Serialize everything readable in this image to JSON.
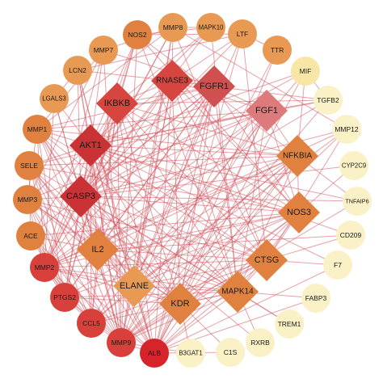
{
  "network": {
    "colors": {
      "edge": "#d2545c",
      "hub_dark": "#c93335",
      "hub_red": "#d64540",
      "mid_red": "#d0504f",
      "pink": "#dd7a7c",
      "orange": "#e0813f",
      "orange_light": "#e89a55",
      "red": "#d8403c",
      "red_dark": "#d7232a",
      "yellow": "#f7e6a6",
      "yellow_light": "#fbf1c6",
      "white": "#ffffff"
    },
    "nodes": [
      {
        "id": "AKT1",
        "shape": "diamond",
        "color": "hub_dark",
        "text": "white"
      },
      {
        "id": "CASP3",
        "shape": "diamond",
        "color": "hub_dark",
        "text": "white"
      },
      {
        "id": "IKBKB",
        "shape": "diamond",
        "color": "hub_red",
        "text": "white"
      },
      {
        "id": "RNASE3",
        "shape": "diamond",
        "color": "hub_red",
        "text": "dark"
      },
      {
        "id": "FGFR1",
        "shape": "diamond",
        "color": "mid_red",
        "text": "white"
      },
      {
        "id": "FGF1",
        "shape": "diamond",
        "color": "pink",
        "text": "dark"
      },
      {
        "id": "NFKBIA",
        "shape": "diamond",
        "color": "orange",
        "text": "dark"
      },
      {
        "id": "NOS3",
        "shape": "diamond",
        "color": "orange",
        "text": "dark"
      },
      {
        "id": "CTSG",
        "shape": "diamond",
        "color": "orange",
        "text": "dark"
      },
      {
        "id": "MAPK14",
        "shape": "diamond",
        "color": "orange",
        "text": "dark"
      },
      {
        "id": "KDR",
        "shape": "diamond",
        "color": "orange",
        "text": "dark"
      },
      {
        "id": "ELANE",
        "shape": "diamond",
        "color": "orange_light",
        "text": "dark"
      },
      {
        "id": "IL2",
        "shape": "diamond",
        "color": "orange",
        "text": "dark"
      },
      {
        "id": "NOS2",
        "shape": "circle",
        "color": "orange",
        "text": "dark"
      },
      {
        "id": "MMP8",
        "shape": "circle",
        "color": "orange_light",
        "text": "dark"
      },
      {
        "id": "MAPK10",
        "shape": "circle",
        "color": "orange_light",
        "text": "dark"
      },
      {
        "id": "LTF",
        "shape": "circle",
        "color": "orange_light",
        "text": "dark"
      },
      {
        "id": "TTR",
        "shape": "circle",
        "color": "orange_light",
        "text": "dark"
      },
      {
        "id": "MIF",
        "shape": "circle",
        "color": "yellow",
        "text": "dark"
      },
      {
        "id": "TGFB2",
        "shape": "circle",
        "color": "yellow_light",
        "text": "dark"
      },
      {
        "id": "MMP12",
        "shape": "circle",
        "color": "yellow_light",
        "text": "dark"
      },
      {
        "id": "CYP2C9",
        "shape": "circle",
        "color": "yellow_light",
        "text": "dark"
      },
      {
        "id": "TNFAIP6",
        "shape": "circle",
        "color": "yellow_light",
        "text": "dark"
      },
      {
        "id": "CD209",
        "shape": "circle",
        "color": "yellow_light",
        "text": "dark"
      },
      {
        "id": "F7",
        "shape": "circle",
        "color": "yellow_light",
        "text": "dark"
      },
      {
        "id": "FABP3",
        "shape": "circle",
        "color": "yellow_light",
        "text": "dark"
      },
      {
        "id": "TREM1",
        "shape": "circle",
        "color": "yellow_light",
        "text": "dark"
      },
      {
        "id": "RXRB",
        "shape": "circle",
        "color": "yellow_light",
        "text": "dark"
      },
      {
        "id": "C1S",
        "shape": "circle",
        "color": "yellow_light",
        "text": "dark"
      },
      {
        "id": "B3GAT1",
        "shape": "circle",
        "color": "yellow_light",
        "text": "dark"
      },
      {
        "id": "ALB",
        "shape": "circle",
        "color": "red_dark",
        "text": "dark"
      },
      {
        "id": "MMP9",
        "shape": "circle",
        "color": "red",
        "text": "dark"
      },
      {
        "id": "CCL5",
        "shape": "circle",
        "color": "red",
        "text": "dark"
      },
      {
        "id": "PTGS2",
        "shape": "circle",
        "color": "red",
        "text": "dark"
      },
      {
        "id": "MMP2",
        "shape": "circle",
        "color": "red",
        "text": "dark"
      },
      {
        "id": "ACE",
        "shape": "circle",
        "color": "orange",
        "text": "dark"
      },
      {
        "id": "MMP3",
        "shape": "circle",
        "color": "orange",
        "text": "dark"
      },
      {
        "id": "SELE",
        "shape": "circle",
        "color": "orange",
        "text": "dark"
      },
      {
        "id": "MMP1",
        "shape": "circle",
        "color": "orange",
        "text": "dark"
      },
      {
        "id": "LGALS3",
        "shape": "circle",
        "color": "orange_light",
        "text": "dark"
      },
      {
        "id": "LCN2",
        "shape": "circle",
        "color": "orange_light",
        "text": "dark"
      },
      {
        "id": "MMP7",
        "shape": "circle",
        "color": "orange_light",
        "text": "dark"
      }
    ],
    "edges": [
      [
        "ALB",
        "AKT1"
      ],
      [
        "ALB",
        "CASP3"
      ],
      [
        "ALB",
        "IL2"
      ],
      [
        "ALB",
        "ELANE"
      ],
      [
        "ALB",
        "KDR"
      ],
      [
        "ALB",
        "MAPK14"
      ],
      [
        "ALB",
        "CTSG"
      ],
      [
        "ALB",
        "NOS3"
      ],
      [
        "ALB",
        "NFKBIA"
      ],
      [
        "ALB",
        "FGF1"
      ],
      [
        "ALB",
        "FGFR1"
      ],
      [
        "ALB",
        "RNASE3"
      ],
      [
        "ALB",
        "IKBKB"
      ],
      [
        "ALB",
        "MMP9"
      ],
      [
        "ALB",
        "MMP2"
      ],
      [
        "ALB",
        "TTR"
      ],
      [
        "ALB",
        "LTF"
      ],
      [
        "ALB",
        "MIF"
      ],
      [
        "ALB",
        "C1S"
      ],
      [
        "ALB",
        "F7"
      ],
      [
        "ALB",
        "FABP3"
      ],
      [
        "ALB",
        "ACE"
      ],
      [
        "ALB",
        "SELE"
      ],
      [
        "ALB",
        "LCN2"
      ],
      [
        "AKT1",
        "CASP3"
      ],
      [
        "AKT1",
        "IKBKB"
      ],
      [
        "AKT1",
        "RNASE3"
      ],
      [
        "AKT1",
        "FGFR1"
      ],
      [
        "AKT1",
        "FGF1"
      ],
      [
        "AKT1",
        "NFKBIA"
      ],
      [
        "AKT1",
        "NOS3"
      ],
      [
        "AKT1",
        "CTSG"
      ],
      [
        "AKT1",
        "MAPK14"
      ],
      [
        "AKT1",
        "KDR"
      ],
      [
        "AKT1",
        "ELANE"
      ],
      [
        "AKT1",
        "IL2"
      ],
      [
        "AKT1",
        "MMP9"
      ],
      [
        "AKT1",
        "MMP2"
      ],
      [
        "AKT1",
        "PTGS2"
      ],
      [
        "AKT1",
        "CCL5"
      ],
      [
        "AKT1",
        "NOS2"
      ],
      [
        "AKT1",
        "MAPK10"
      ],
      [
        "AKT1",
        "MIF"
      ],
      [
        "AKT1",
        "TGFB2"
      ],
      [
        "AKT1",
        "TNFAIP6"
      ],
      [
        "AKT1",
        "CD209"
      ],
      [
        "AKT1",
        "MMP1"
      ],
      [
        "AKT1",
        "MMP3"
      ],
      [
        "AKT1",
        "SELE"
      ],
      [
        "AKT1",
        "LGALS3"
      ],
      [
        "AKT1",
        "LCN2"
      ],
      [
        "AKT1",
        "MMP7"
      ],
      [
        "AKT1",
        "ACE"
      ],
      [
        "AKT1",
        "F7"
      ],
      [
        "CASP3",
        "IKBKB"
      ],
      [
        "CASP3",
        "RNASE3"
      ],
      [
        "CASP3",
        "FGFR1"
      ],
      [
        "CASP3",
        "FGF1"
      ],
      [
        "CASP3",
        "NFKBIA"
      ],
      [
        "CASP3",
        "NOS3"
      ],
      [
        "CASP3",
        "CTSG"
      ],
      [
        "CASP3",
        "MAPK14"
      ],
      [
        "CASP3",
        "KDR"
      ],
      [
        "CASP3",
        "ELANE"
      ],
      [
        "CASP3",
        "IL2"
      ],
      [
        "CASP3",
        "MMP9"
      ],
      [
        "CASP3",
        "MMP2"
      ],
      [
        "CASP3",
        "PTGS2"
      ],
      [
        "CASP3",
        "CCL5"
      ],
      [
        "CASP3",
        "NOS2"
      ],
      [
        "CASP3",
        "MAPK10"
      ],
      [
        "CASP3",
        "LTF"
      ],
      [
        "CASP3",
        "MIF"
      ],
      [
        "CASP3",
        "MMP12"
      ],
      [
        "CASP3",
        "CYP2C9"
      ],
      [
        "CASP3",
        "TNFAIP6"
      ],
      [
        "CASP3",
        "MMP1"
      ],
      [
        "CASP3",
        "MMP3"
      ],
      [
        "CASP3",
        "SELE"
      ],
      [
        "CASP3",
        "LGALS3"
      ],
      [
        "CASP3",
        "LCN2"
      ],
      [
        "CASP3",
        "MMP8"
      ],
      [
        "CASP3",
        "TREM1"
      ],
      [
        "CASP3",
        "RXRB"
      ],
      [
        "IKBKB",
        "RNASE3"
      ],
      [
        "IKBKB",
        "FGFR1"
      ],
      [
        "IKBKB",
        "NFKBIA"
      ],
      [
        "IKBKB",
        "NOS3"
      ],
      [
        "IKBKB",
        "MAPK14"
      ],
      [
        "IKBKB",
        "IL2"
      ],
      [
        "IKBKB",
        "MMP9"
      ],
      [
        "IKBKB",
        "PTGS2"
      ],
      [
        "IKBKB",
        "CCL5"
      ],
      [
        "IKBKB",
        "NOS2"
      ],
      [
        "IKBKB",
        "MAPK10"
      ],
      [
        "IKBKB",
        "TGFB2"
      ],
      [
        "IKBKB",
        "MMP2"
      ],
      [
        "IKBKB",
        "CTSG"
      ],
      [
        "IKBKB",
        "KDR"
      ],
      [
        "RNASE3",
        "FGFR1"
      ],
      [
        "RNASE3",
        "ELANE"
      ],
      [
        "RNASE3",
        "CTSG"
      ],
      [
        "RNASE3",
        "LTF"
      ],
      [
        "RNASE3",
        "MMP9"
      ],
      [
        "RNASE3",
        "IL2"
      ],
      [
        "RNASE3",
        "LCN2"
      ],
      [
        "RNASE3",
        "MMP8"
      ],
      [
        "RNASE3",
        "MMP2"
      ],
      [
        "RNASE3",
        "KDR"
      ],
      [
        "RNASE3",
        "NOS3"
      ],
      [
        "RNASE3",
        "MAPK14"
      ],
      [
        "RNASE3",
        "FGF1"
      ],
      [
        "FGFR1",
        "FGF1"
      ],
      [
        "FGFR1",
        "KDR"
      ],
      [
        "FGFR1",
        "MAPK14"
      ],
      [
        "FGFR1",
        "NOS3"
      ],
      [
        "FGFR1",
        "MMP9"
      ],
      [
        "FGFR1",
        "MMP2"
      ],
      [
        "FGFR1",
        "TGFB2"
      ],
      [
        "FGFR1",
        "MMP1"
      ],
      [
        "FGFR1",
        "MMP7"
      ],
      [
        "FGFR1",
        "ELANE"
      ],
      [
        "FGFR1",
        "IL2"
      ],
      [
        "FGFR1",
        "CCL5"
      ],
      [
        "FGFR1",
        "PTGS2"
      ],
      [
        "FGFR1",
        "ACE"
      ],
      [
        "FGF1",
        "KDR"
      ],
      [
        "FGF1",
        "MAPK14"
      ],
      [
        "FGF1",
        "NOS3"
      ],
      [
        "FGF1",
        "MMP9"
      ],
      [
        "FGF1",
        "MMP2"
      ],
      [
        "FGF1",
        "TGFB2"
      ],
      [
        "FGF1",
        "NFKBIA"
      ],
      [
        "FGF1",
        "ELANE"
      ],
      [
        "FGF1",
        "IL2"
      ],
      [
        "FGF1",
        "MMP3"
      ],
      [
        "FGF1",
        "MMP1"
      ],
      [
        "FGF1",
        "SELE"
      ],
      [
        "NFKBIA",
        "NOS3"
      ],
      [
        "NFKBIA",
        "MAPK14"
      ],
      [
        "NFKBIA",
        "PTGS2"
      ],
      [
        "NFKBIA",
        "CCL5"
      ],
      [
        "NFKBIA",
        "IL2"
      ],
      [
        "NFKBIA",
        "MMP9"
      ],
      [
        "NFKBIA",
        "NOS2"
      ],
      [
        "NFKBIA",
        "SELE"
      ],
      [
        "NFKBIA",
        "MIF"
      ],
      [
        "NFKBIA",
        "TNFAIP6"
      ],
      [
        "NFKBIA",
        "MMP2"
      ],
      [
        "NFKBIA",
        "ELANE"
      ],
      [
        "NFKBIA",
        "KDR"
      ],
      [
        "NFKBIA",
        "MMP1"
      ],
      [
        "NOS3",
        "MAPK14"
      ],
      [
        "NOS3",
        "KDR"
      ],
      [
        "NOS3",
        "PTGS2"
      ],
      [
        "NOS3",
        "MMP9"
      ],
      [
        "NOS3",
        "MMP2"
      ],
      [
        "NOS3",
        "NOS2"
      ],
      [
        "NOS3",
        "ACE"
      ],
      [
        "NOS3",
        "IL2"
      ],
      [
        "NOS3",
        "ELANE"
      ],
      [
        "NOS3",
        "CTSG"
      ],
      [
        "NOS3",
        "SELE"
      ],
      [
        "NOS3",
        "CYP2C9"
      ],
      [
        "CTSG",
        "ELANE"
      ],
      [
        "CTSG",
        "MMP9"
      ],
      [
        "CTSG",
        "MMP2"
      ],
      [
        "CTSG",
        "IL2"
      ],
      [
        "CTSG",
        "MMP8"
      ],
      [
        "CTSG",
        "LTF"
      ],
      [
        "CTSG",
        "MMP12"
      ],
      [
        "CTSG",
        "CCL5"
      ],
      [
        "CTSG",
        "KDR"
      ],
      [
        "CTSG",
        "MAPK14"
      ],
      [
        "CTSG",
        "MMP1"
      ],
      [
        "CTSG",
        "MMP3"
      ],
      [
        "CTSG",
        "F7"
      ],
      [
        "CTSG",
        "CD209"
      ],
      [
        "MAPK14",
        "KDR"
      ],
      [
        "MAPK14",
        "ELANE"
      ],
      [
        "MAPK14",
        "IL2"
      ],
      [
        "MAPK14",
        "MMP9"
      ],
      [
        "MAPK14",
        "MMP2"
      ],
      [
        "MAPK14",
        "PTGS2"
      ],
      [
        "MAPK14",
        "CCL5"
      ],
      [
        "MAPK14",
        "MAPK10"
      ],
      [
        "MAPK14",
        "NOS2"
      ],
      [
        "MAPK14",
        "MMP1"
      ],
      [
        "MAPK14",
        "MMP3"
      ],
      [
        "MAPK14",
        "TREM1"
      ],
      [
        "MAPK14",
        "RXRB"
      ],
      [
        "MAPK14",
        "FABP3"
      ],
      [
        "KDR",
        "ELANE"
      ],
      [
        "KDR",
        "IL2"
      ],
      [
        "KDR",
        "MMP9"
      ],
      [
        "KDR",
        "MMP2"
      ],
      [
        "KDR",
        "PTGS2"
      ],
      [
        "KDR",
        "MMP1"
      ],
      [
        "KDR",
        "SELE"
      ],
      [
        "KDR",
        "MMP3"
      ],
      [
        "KDR",
        "B3GAT1"
      ],
      [
        "KDR",
        "C1S"
      ],
      [
        "ELANE",
        "IL2"
      ],
      [
        "ELANE",
        "MMP9"
      ],
      [
        "ELANE",
        "MMP2"
      ],
      [
        "ELANE",
        "LCN2"
      ],
      [
        "ELANE",
        "LTF"
      ],
      [
        "ELANE",
        "MMP8"
      ],
      [
        "ELANE",
        "CCL5"
      ],
      [
        "ELANE",
        "MMP12"
      ],
      [
        "ELANE",
        "MMP1"
      ],
      [
        "ELANE",
        "MMP3"
      ],
      [
        "ELANE",
        "SELE"
      ],
      [
        "IL2",
        "MMP9"
      ],
      [
        "IL2",
        "MMP2"
      ],
      [
        "IL2",
        "PTGS2"
      ],
      [
        "IL2",
        "CCL5"
      ],
      [
        "IL2",
        "SELE"
      ],
      [
        "IL2",
        "ACE"
      ],
      [
        "IL2",
        "MMP3"
      ],
      [
        "IL2",
        "MMP1"
      ],
      [
        "IL2",
        "CD209"
      ],
      [
        "MMP9",
        "MMP2"
      ],
      [
        "MMP9",
        "CCL5"
      ],
      [
        "MMP9",
        "PTGS2"
      ],
      [
        "MMP9",
        "MMP3"
      ],
      [
        "MMP9",
        "MMP1"
      ],
      [
        "MMP9",
        "MMP7"
      ],
      [
        "MMP9",
        "MMP8"
      ],
      [
        "MMP9",
        "LCN2"
      ],
      [
        "MMP9",
        "NOS2"
      ],
      [
        "MMP9",
        "TTR"
      ],
      [
        "MMP9",
        "MMP12"
      ],
      [
        "MMP9",
        "LGALS3"
      ],
      [
        "MMP9",
        "SELE"
      ],
      [
        "MMP9",
        "ACE"
      ],
      [
        "MMP9",
        "TGFB2"
      ],
      [
        "MMP9",
        "TNFAIP6"
      ],
      [
        "MMP9",
        "B3GAT1"
      ],
      [
        "MMP2",
        "MMP3"
      ],
      [
        "MMP2",
        "MMP1"
      ],
      [
        "MMP2",
        "MMP7"
      ],
      [
        "MMP2",
        "PTGS2"
      ],
      [
        "MMP2",
        "CCL5"
      ],
      [
        "MMP2",
        "MMP8"
      ],
      [
        "MMP2",
        "LGALS3"
      ],
      [
        "MMP2",
        "TGFB2"
      ],
      [
        "MMP2",
        "MMP12"
      ],
      [
        "PTGS2",
        "CCL5"
      ],
      [
        "PTGS2",
        "NOS2"
      ],
      [
        "PTGS2",
        "SELE"
      ],
      [
        "PTGS2",
        "ACE"
      ],
      [
        "PTGS2",
        "MMP1"
      ],
      [
        "PTGS2",
        "MMP3"
      ],
      [
        "CCL5",
        "SELE"
      ],
      [
        "CCL5",
        "ACE"
      ],
      [
        "CCL5",
        "MIF"
      ],
      [
        "CCL5",
        "MMP3"
      ],
      [
        "MMP1",
        "MMP3"
      ],
      [
        "MMP1",
        "MMP7"
      ],
      [
        "MMP1",
        "MMP8"
      ],
      [
        "MMP3",
        "MMP7"
      ],
      [
        "MMP7",
        "MMP8"
      ],
      [
        "LCN2",
        "LTF"
      ],
      [
        "LGALS3",
        "LCN2"
      ],
      [
        "NOS2",
        "MAPK10"
      ],
      [
        "NOS2",
        "LTF"
      ],
      [
        "TTR",
        "LTF"
      ],
      [
        "MIF",
        "TGFB2"
      ],
      [
        "SELE",
        "ACE"
      ],
      [
        "MMP12",
        "MMP8"
      ],
      [
        "MAPK10",
        "MMP8"
      ]
    ]
  }
}
